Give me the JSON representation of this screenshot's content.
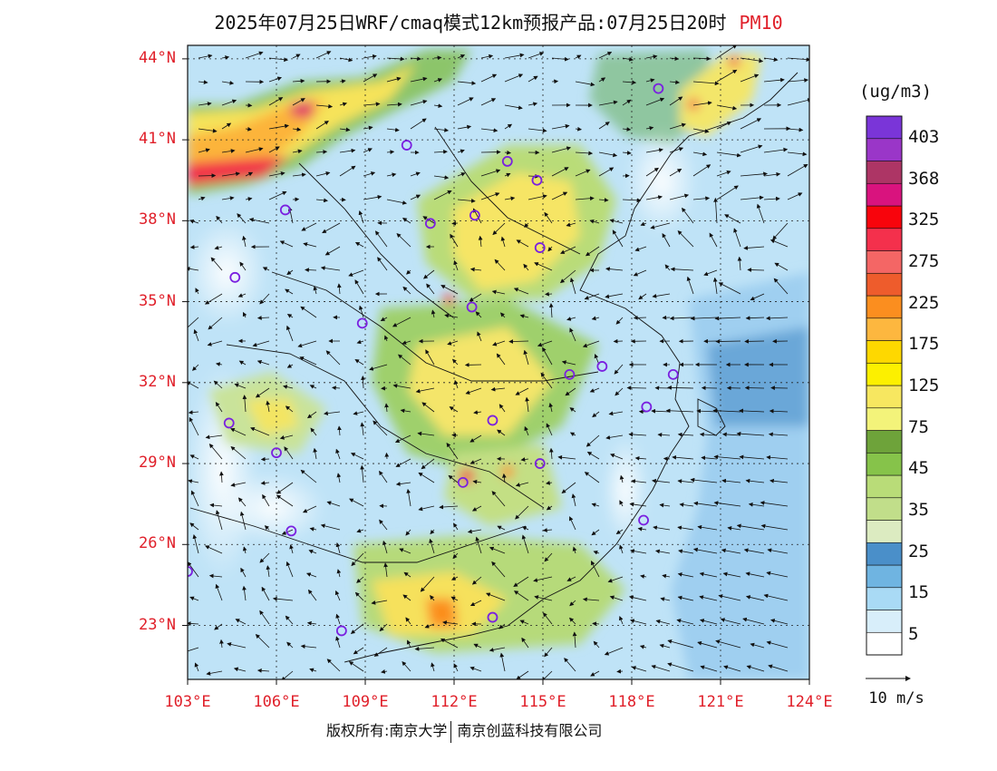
{
  "title": {
    "main": "2025年07月25日WRF/cmaq模式12km预报产品:07月25日20时",
    "pollutant": "PM10"
  },
  "map": {
    "lon_range": [
      103,
      124
    ],
    "lat_range": [
      21,
      44.5
    ],
    "lat_labels": [
      "44°N",
      "41°N",
      "38°N",
      "35°N",
      "32°N",
      "29°N",
      "26°N",
      "23°N"
    ],
    "lat_values": [
      44,
      41,
      38,
      35,
      32,
      29,
      26,
      23
    ],
    "lon_labels": [
      "103°E",
      "106°E",
      "109°E",
      "112°E",
      "115°E",
      "118°E",
      "121°E",
      "124°E"
    ],
    "lon_values": [
      103,
      106,
      109,
      112,
      115,
      118,
      121,
      124
    ],
    "axis_label_color": "#e0202a",
    "grid": "dotted",
    "cities": [
      [
        118.9,
        42.9
      ],
      [
        110.4,
        40.8
      ],
      [
        113.8,
        40.2
      ],
      [
        114.8,
        39.5
      ],
      [
        106.3,
        38.4
      ],
      [
        111.2,
        37.9
      ],
      [
        112.7,
        38.2
      ],
      [
        114.9,
        37.0
      ],
      [
        104.6,
        35.9
      ],
      [
        112.6,
        34.8
      ],
      [
        108.9,
        34.2
      ],
      [
        117.0,
        32.6
      ],
      [
        115.9,
        32.3
      ],
      [
        119.4,
        32.3
      ],
      [
        118.5,
        31.1
      ],
      [
        113.3,
        30.6
      ],
      [
        104.4,
        30.5
      ],
      [
        106.0,
        29.4
      ],
      [
        114.9,
        29.0
      ],
      [
        112.3,
        28.3
      ],
      [
        106.5,
        26.5
      ],
      [
        118.4,
        26.9
      ],
      [
        103.0,
        25.0
      ],
      [
        113.3,
        23.3
      ],
      [
        108.2,
        22.8
      ]
    ]
  },
  "legend": {
    "unit": "(ug/m3)",
    "colors": [
      "#ffffff",
      "#d8eefa",
      "#a9daf5",
      "#6fb4e1",
      "#4a8fc9",
      "#dcebc1",
      "#c1de8a",
      "#b9dc78",
      "#86c34a",
      "#6ea33a",
      "#f3f37a",
      "#f7e760",
      "#fcf000",
      "#fed800",
      "#fdb73f",
      "#fb8e1f",
      "#ee5c2c",
      "#f46665",
      "#f4304c",
      "#f8040c",
      "#d9137e",
      "#ad3565",
      "#9a36c8",
      "#7a35d8"
    ],
    "labels": [
      "403",
      "368",
      "325",
      "275",
      "225",
      "175",
      "125",
      "75",
      "45",
      "35",
      "25",
      "15",
      "5"
    ]
  },
  "wind": {
    "reference": "10 m/s"
  },
  "footer": {
    "copyright": "版权所有:南京大学",
    "company": "南京创蓝科技有限公司"
  }
}
